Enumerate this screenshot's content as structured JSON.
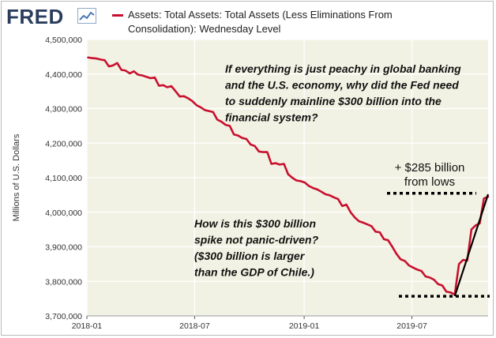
{
  "header": {
    "logo_text": "FRED",
    "legend_line1": "Assets: Total Assets: Total Assets (Less Eliminations From",
    "legend_line2": "Consolidation): Wednesday Level"
  },
  "colors": {
    "series": "#c8102e",
    "plot_background": "#f2f2e4",
    "grid": "#ffffff",
    "annotation_ink": "#000000"
  },
  "annotations": {
    "question_top": [
      "If everything is just peachy in global banking",
      "and the U.S. economy, why did the Fed need",
      "to suddenly mainline $300 billion into the",
      "financial system?"
    ],
    "question_bottom": [
      "How is this $300 billion",
      "spike not panic-driven?",
      "($300 billion is larger",
      "than the GDP of Chile.)"
    ],
    "gain_label": [
      "+ $285 billion",
      "from lows"
    ]
  },
  "chart_data": {
    "type": "line",
    "title": "",
    "ylabel": "Millions of U.S. Dollars",
    "xlabel": "",
    "ylim": [
      3700000,
      4500000
    ],
    "y_ticks": [
      3700000,
      3800000,
      3900000,
      4000000,
      4100000,
      4200000,
      4300000,
      4400000,
      4500000
    ],
    "y_tick_labels": [
      "3,700,000",
      "3,800,000",
      "3,900,000",
      "4,000,000",
      "4,100,000",
      "4,200,000",
      "4,300,000",
      "4,400,000",
      "4,500,000"
    ],
    "x_tick_labels": [
      "2018-01",
      "2018-07",
      "2019-01",
      "2019-07"
    ],
    "x_tick_dates": [
      "2018-01-01",
      "2018-07-01",
      "2019-01-01",
      "2019-07-01"
    ],
    "xlim": [
      "2018-01-01",
      "2019-11-06"
    ],
    "grid": true,
    "legend_position": "top",
    "series": [
      {
        "name": "Assets: Total Assets: Total Assets (Less Eliminations From Consolidation): Wednesday Level",
        "points": [
          [
            "2018-01-03",
            4448000
          ],
          [
            "2018-01-10",
            4446000
          ],
          [
            "2018-01-17",
            4445000
          ],
          [
            "2018-01-24",
            4442000
          ],
          [
            "2018-01-31",
            4440000
          ],
          [
            "2018-02-07",
            4422000
          ],
          [
            "2018-02-14",
            4425000
          ],
          [
            "2018-02-21",
            4432000
          ],
          [
            "2018-02-28",
            4412000
          ],
          [
            "2018-03-07",
            4410000
          ],
          [
            "2018-03-14",
            4402000
          ],
          [
            "2018-03-21",
            4408000
          ],
          [
            "2018-03-28",
            4398000
          ],
          [
            "2018-04-04",
            4396000
          ],
          [
            "2018-04-11",
            4392000
          ],
          [
            "2018-04-18",
            4388000
          ],
          [
            "2018-04-25",
            4390000
          ],
          [
            "2018-05-02",
            4366000
          ],
          [
            "2018-05-09",
            4368000
          ],
          [
            "2018-05-16",
            4362000
          ],
          [
            "2018-05-23",
            4365000
          ],
          [
            "2018-05-30",
            4350000
          ],
          [
            "2018-06-06",
            4335000
          ],
          [
            "2018-06-13",
            4336000
          ],
          [
            "2018-06-20",
            4330000
          ],
          [
            "2018-06-27",
            4322000
          ],
          [
            "2018-07-04",
            4310000
          ],
          [
            "2018-07-11",
            4304000
          ],
          [
            "2018-07-18",
            4296000
          ],
          [
            "2018-07-25",
            4293000
          ],
          [
            "2018-08-01",
            4290000
          ],
          [
            "2018-08-08",
            4268000
          ],
          [
            "2018-08-15",
            4262000
          ],
          [
            "2018-08-22",
            4253000
          ],
          [
            "2018-08-29",
            4250000
          ],
          [
            "2018-09-05",
            4225000
          ],
          [
            "2018-09-12",
            4222000
          ],
          [
            "2018-09-19",
            4215000
          ],
          [
            "2018-09-26",
            4212000
          ],
          [
            "2018-10-03",
            4196000
          ],
          [
            "2018-10-10",
            4192000
          ],
          [
            "2018-10-17",
            4176000
          ],
          [
            "2018-10-24",
            4174000
          ],
          [
            "2018-10-31",
            4174000
          ],
          [
            "2018-11-07",
            4140000
          ],
          [
            "2018-11-14",
            4142000
          ],
          [
            "2018-11-21",
            4138000
          ],
          [
            "2018-11-28",
            4140000
          ],
          [
            "2018-12-05",
            4110000
          ],
          [
            "2018-12-12",
            4100000
          ],
          [
            "2018-12-19",
            4092000
          ],
          [
            "2018-12-26",
            4090000
          ],
          [
            "2019-01-02",
            4086000
          ],
          [
            "2019-01-09",
            4076000
          ],
          [
            "2019-01-16",
            4070000
          ],
          [
            "2019-01-23",
            4066000
          ],
          [
            "2019-01-30",
            4059000
          ],
          [
            "2019-02-06",
            4052000
          ],
          [
            "2019-02-13",
            4049000
          ],
          [
            "2019-02-20",
            4043000
          ],
          [
            "2019-02-27",
            4038000
          ],
          [
            "2019-03-06",
            4018000
          ],
          [
            "2019-03-13",
            4022000
          ],
          [
            "2019-03-20",
            4000000
          ],
          [
            "2019-03-27",
            3985000
          ],
          [
            "2019-04-03",
            3974000
          ],
          [
            "2019-04-10",
            3970000
          ],
          [
            "2019-04-17",
            3965000
          ],
          [
            "2019-04-24",
            3960000
          ],
          [
            "2019-05-01",
            3944000
          ],
          [
            "2019-05-08",
            3942000
          ],
          [
            "2019-05-15",
            3922000
          ],
          [
            "2019-05-22",
            3919000
          ],
          [
            "2019-05-29",
            3900000
          ],
          [
            "2019-06-05",
            3880000
          ],
          [
            "2019-06-12",
            3864000
          ],
          [
            "2019-06-19",
            3859000
          ],
          [
            "2019-06-26",
            3846000
          ],
          [
            "2019-07-03",
            3840000
          ],
          [
            "2019-07-10",
            3834000
          ],
          [
            "2019-07-17",
            3830000
          ],
          [
            "2019-07-24",
            3814000
          ],
          [
            "2019-07-31",
            3811000
          ],
          [
            "2019-08-07",
            3805000
          ],
          [
            "2019-08-14",
            3792000
          ],
          [
            "2019-08-21",
            3788000
          ],
          [
            "2019-08-28",
            3770000
          ],
          [
            "2019-09-04",
            3768000
          ],
          [
            "2019-09-11",
            3762000
          ],
          [
            "2019-09-18",
            3850000
          ],
          [
            "2019-09-25",
            3862000
          ],
          [
            "2019-10-02",
            3860000
          ],
          [
            "2019-10-09",
            3950000
          ],
          [
            "2019-10-16",
            3962000
          ],
          [
            "2019-10-23",
            3968000
          ],
          [
            "2019-10-30",
            4040000
          ],
          [
            "2019-11-06",
            4045000
          ]
        ]
      }
    ],
    "overlays": {
      "low_level": 3757000,
      "high_level": 4055000,
      "trend_from": [
        "2019-09-11",
        3757000
      ],
      "trend_to": [
        "2019-11-06",
        4052000
      ]
    }
  }
}
